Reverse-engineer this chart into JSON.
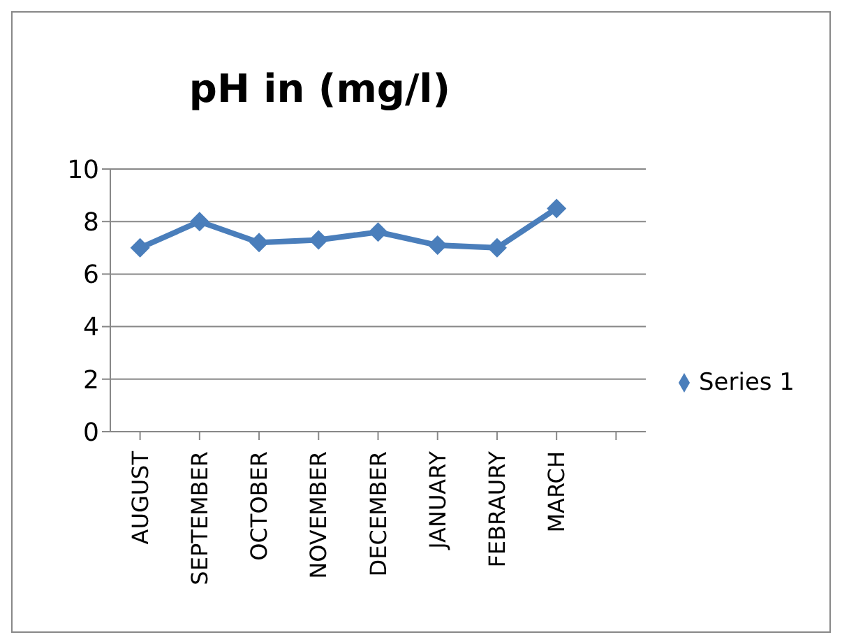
{
  "chart_data": {
    "type": "line",
    "title": "pH in (mg/l)",
    "categories": [
      "AUGUST",
      "SEPTEMBER",
      "OCTOBER",
      "NOVEMBER",
      "DECEMBER",
      "JANUARY",
      "FEBRAURY",
      "MARCH",
      null
    ],
    "series": [
      {
        "name": "Series 1",
        "color": "#4a7ebb",
        "values": [
          7.0,
          8.0,
          7.2,
          7.3,
          7.6,
          7.1,
          7.0,
          8.5,
          null
        ]
      }
    ],
    "ylim": [
      0,
      10
    ],
    "yticks": [
      0,
      2,
      4,
      6,
      8,
      10
    ],
    "grid": "y",
    "legend": "right",
    "marker": "diamond",
    "line_style": "solid"
  }
}
